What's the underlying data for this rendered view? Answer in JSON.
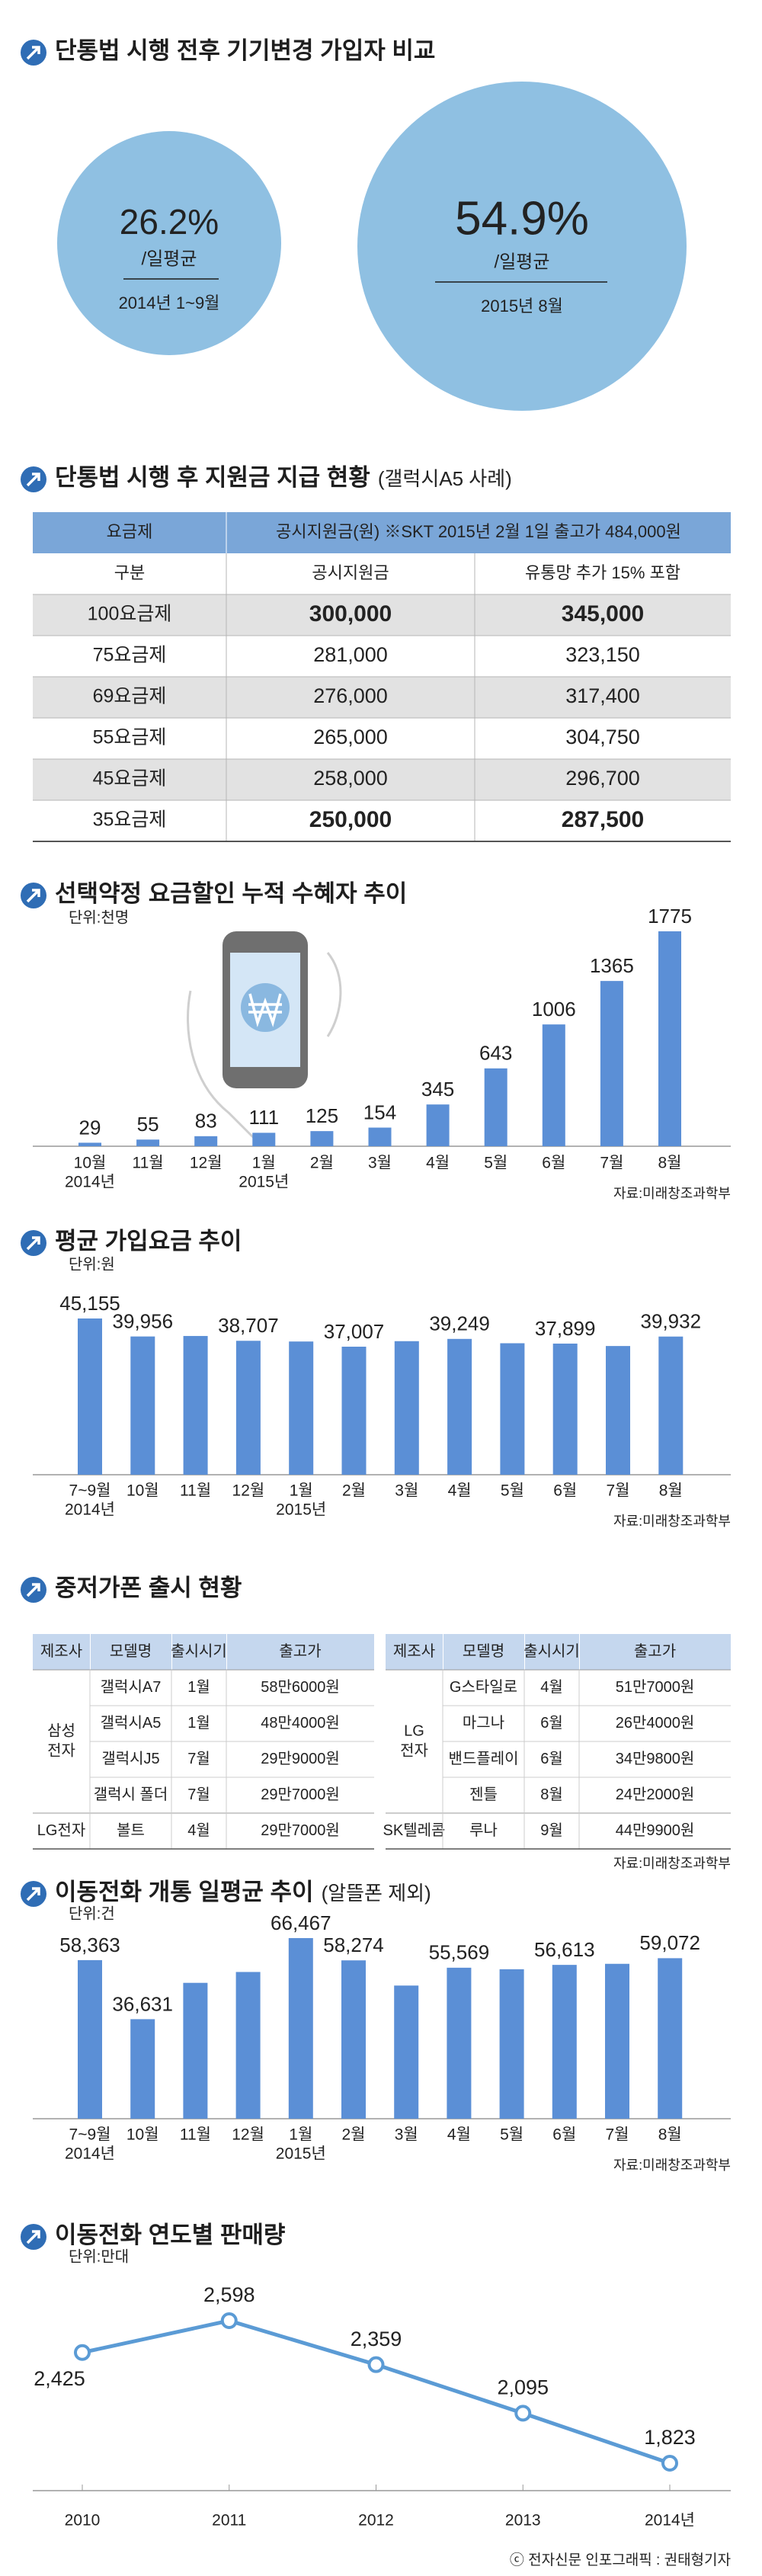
{
  "comparison": {
    "title": "단통법 시행 전후 기기변경 가입자 비교",
    "color": "#8fc0e2",
    "items": [
      {
        "value": "26.2%",
        "sub": "/일평균",
        "period": "2014년 1~9월"
      },
      {
        "value": "54.9%",
        "sub": "/일평균",
        "period": "2015년 8월"
      }
    ]
  },
  "subsidy": {
    "title": "단통법 시행 후 지원금 지급 현황",
    "subtitle": "(갤럭시A5 사례)",
    "header": [
      [
        "요금제",
        "공시지원금(원) ※SKT 2015년 2월 1일 출고가 484,000원"
      ],
      [
        "구분",
        "공시지원금",
        "유통망 추가 15% 포함"
      ]
    ],
    "rows": [
      [
        "100요금제",
        "300,000",
        "345,000"
      ],
      [
        "75요금제",
        "281,000",
        "323,150"
      ],
      [
        "69요금제",
        "276,000",
        "317,400"
      ],
      [
        "55요금제",
        "265,000",
        "304,750"
      ],
      [
        "45요금제",
        "258,000",
        "296,700"
      ],
      [
        "35요금제",
        "250,000",
        "287,500"
      ]
    ]
  },
  "chart_data": [
    {
      "type": "bar",
      "title": "선택약정 요금할인 누적 수혜자 추이",
      "unit": "단위:천명",
      "color": "#5b8fd6",
      "categories": [
        "10월",
        "11월",
        "12월",
        "1월",
        "2월",
        "3월",
        "4월",
        "5월",
        "6월",
        "7월",
        "8월"
      ],
      "category_sublabels": [
        "2014년",
        null,
        null,
        "2015년",
        null,
        null,
        null,
        null,
        null,
        null,
        null
      ],
      "values": [
        29,
        55,
        83,
        111,
        125,
        154,
        345,
        643,
        1006,
        1365,
        1775
      ],
      "source": "자료:미래창조과학부"
    },
    {
      "type": "bar",
      "title": "평균 가입요금 추이",
      "unit": "단위:원",
      "color": "#5b8fd6",
      "categories": [
        "7~9월",
        "10월",
        "11월",
        "12월",
        "1월",
        "2월",
        "3월",
        "4월",
        "5월",
        "6월",
        "7월",
        "8월"
      ],
      "category_sublabels": [
        "2014년",
        null,
        null,
        null,
        "2015년",
        null,
        null,
        null,
        null,
        null,
        null,
        null
      ],
      "values": [
        45155,
        39956,
        40100,
        38707,
        38500,
        37007,
        38600,
        39249,
        38000,
        37899,
        37200,
        39932
      ],
      "value_labels": [
        "45,155",
        "39,956",
        null,
        "38,707",
        null,
        "37,007",
        null,
        "39,249",
        null,
        "37,899",
        null,
        "39,932"
      ],
      "source": "자료:미래창조과학부"
    },
    {
      "type": "bar",
      "title": "이동전화 개통 일평균 추이",
      "subtitle": "(알뜰폰 제외)",
      "unit": "단위:건",
      "color": "#5b8fd6",
      "categories": [
        "7~9월",
        "10월",
        "11월",
        "12월",
        "1월",
        "2월",
        "3월",
        "4월",
        "5월",
        "6월",
        "7월",
        "8월"
      ],
      "category_sublabels": [
        "2014년",
        null,
        null,
        null,
        "2015년",
        null,
        null,
        null,
        null,
        null,
        null,
        null
      ],
      "values": [
        58363,
        36631,
        50000,
        54000,
        66467,
        58274,
        49000,
        55569,
        55000,
        56613,
        57000,
        59072
      ],
      "value_labels": [
        "58,363",
        "36,631",
        null,
        null,
        "66,467",
        "58,274",
        null,
        "55,569",
        null,
        "56,613",
        null,
        "59,072"
      ],
      "source": "자료:미래창조과학부"
    },
    {
      "type": "line",
      "title": "이동전화 연도별 판매량",
      "unit": "단위:만대",
      "color": "#5b9bd5",
      "categories": [
        "2010",
        "2011",
        "2012",
        "2013",
        "2014년"
      ],
      "values": [
        2425,
        2598,
        2359,
        2095,
        1823
      ],
      "value_labels": [
        "2,425",
        "2,598",
        "2,359",
        "2,095",
        "1,823"
      ]
    }
  ],
  "release": {
    "title": "중저가폰 출시 현황",
    "source": "자료:미래창조과학부",
    "tables": [
      {
        "header": [
          "제조사",
          "모델명",
          "출시시기",
          "출고가"
        ],
        "groups": [
          {
            "maker": [
              "삼성",
              "전자"
            ],
            "models": [
              [
                "갤럭시A7",
                "1월",
                "58만6000원"
              ],
              [
                "갤럭시A5",
                "1월",
                "48만4000원"
              ],
              [
                "갤럭시J5",
                "7월",
                "29만9000원"
              ],
              [
                "갤럭시 폴더",
                "7월",
                "29만7000원"
              ]
            ]
          },
          {
            "maker": [
              "LG전자"
            ],
            "models": [
              [
                "볼트",
                "4월",
                "29만7000원"
              ]
            ]
          }
        ]
      },
      {
        "header": [
          "제조사",
          "모델명",
          "출시시기",
          "출고가"
        ],
        "groups": [
          {
            "maker": [
              "LG",
              "전자"
            ],
            "models": [
              [
                "G스타일로",
                "4월",
                "51만7000원"
              ],
              [
                "마그나",
                "6월",
                "26만4000원"
              ],
              [
                "밴드플레이",
                "6월",
                "34만9800원"
              ],
              [
                "젠틀",
                "8월",
                "24만2000원"
              ]
            ]
          },
          {
            "maker": [
              "SK텔레콤"
            ],
            "models": [
              [
                "루나",
                "9월",
                "44만9900원"
              ]
            ]
          }
        ]
      }
    ]
  },
  "footer": "ⓒ 전자신문 인포그래픽 : 권태형기자"
}
